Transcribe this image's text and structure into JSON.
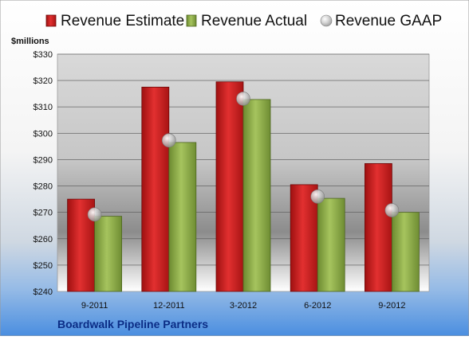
{
  "chart_data": {
    "type": "bar",
    "company": "Boardwalk Pipeline Partners",
    "ylabel": "$millions",
    "categories": [
      "9-2011",
      "12-2011",
      "3-2012",
      "6-2012",
      "9-2012"
    ],
    "ylim": [
      240,
      330
    ],
    "yticks": [
      {
        "value": 240,
        "label": "$240"
      },
      {
        "value": 250,
        "label": "$250"
      },
      {
        "value": 260,
        "label": "$260"
      },
      {
        "value": 270,
        "label": "$270"
      },
      {
        "value": 280,
        "label": "$280"
      },
      {
        "value": 290,
        "label": "$290"
      },
      {
        "value": 300,
        "label": "$300"
      },
      {
        "value": 310,
        "label": "$310"
      },
      {
        "value": 320,
        "label": "$320"
      },
      {
        "value": 330,
        "label": "$330"
      }
    ],
    "grid": true,
    "legend_position": "top",
    "series": [
      {
        "name": "Revenue Estimate",
        "kind": "bar",
        "color": "#cc1a1a",
        "values": [
          275,
          317.5,
          319.5,
          280.5,
          288.5
        ]
      },
      {
        "name": "Revenue Actual",
        "kind": "bar",
        "color": "#8aac44",
        "values": [
          268.5,
          296.5,
          312.8,
          275.3,
          270.0
        ]
      },
      {
        "name": "Revenue GAAP",
        "kind": "marker",
        "color": "#c4c4c4",
        "values": [
          269.2,
          297.3,
          313.1,
          276.0,
          270.8
        ]
      }
    ]
  }
}
